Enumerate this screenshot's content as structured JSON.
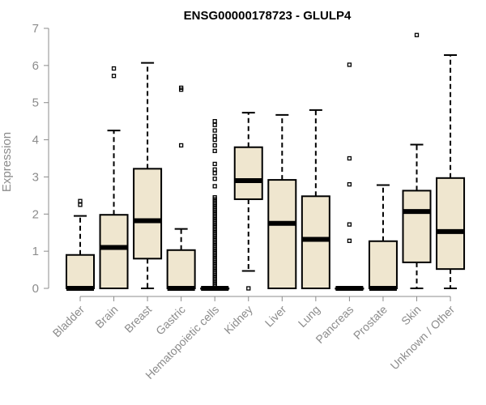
{
  "chart_data": {
    "type": "boxplot",
    "title": "ENSG00000178723 - GLULP4",
    "xlabel": "",
    "ylabel": "Expression",
    "ylim": [
      0,
      7
    ],
    "yticks": [
      0,
      1,
      2,
      3,
      4,
      5,
      6,
      7
    ],
    "box_color": "#efe6cf",
    "categories": [
      "Bladder",
      "Brain",
      "Breast",
      "Gastric",
      "Hematopoietic cells",
      "Kidney",
      "Liver",
      "Lung",
      "Pancreas",
      "Prostate",
      "Skin",
      "Unknown / Other"
    ],
    "boxes": [
      {
        "name": "Bladder",
        "min": 0,
        "q1": 0,
        "median": 0,
        "q3": 0.9,
        "max": 1.95,
        "outliers": [
          2.25,
          2.35
        ]
      },
      {
        "name": "Brain",
        "min": 0,
        "q1": 0,
        "median": 1.1,
        "q3": 1.98,
        "max": 4.25,
        "outliers": [
          5.72,
          5.92
        ]
      },
      {
        "name": "Breast",
        "min": 0,
        "q1": 0.8,
        "median": 1.82,
        "q3": 3.22,
        "max": 6.07,
        "outliers": []
      },
      {
        "name": "Gastric",
        "min": 0,
        "q1": 0,
        "median": 0,
        "q3": 1.03,
        "max": 1.6,
        "outliers": [
          3.85,
          5.35,
          5.4
        ]
      },
      {
        "name": "Hematopoietic cells",
        "min": 0,
        "q1": 0,
        "median": 0,
        "q3": 0,
        "max": 0,
        "outliers": [
          0.05,
          0.1,
          0.15,
          0.2,
          0.25,
          0.3,
          0.35,
          0.4,
          0.45,
          0.5,
          0.55,
          0.6,
          0.65,
          0.7,
          0.75,
          0.8,
          0.85,
          0.9,
          0.95,
          1.0,
          1.05,
          1.1,
          1.15,
          1.2,
          1.25,
          1.3,
          1.35,
          1.4,
          1.45,
          1.5,
          1.55,
          1.6,
          1.65,
          1.7,
          1.75,
          1.8,
          1.85,
          1.9,
          1.95,
          2.0,
          2.05,
          2.1,
          2.15,
          2.2,
          2.25,
          2.3,
          2.35,
          2.4,
          2.45,
          2.75,
          2.95,
          3.1,
          3.2,
          3.35,
          3.7,
          3.85,
          4.0,
          4.1,
          4.25,
          4.4,
          4.5
        ]
      },
      {
        "name": "Kidney",
        "min": 0.47,
        "q1": 2.4,
        "median": 2.9,
        "q3": 3.8,
        "max": 4.73,
        "outliers": [
          0
        ]
      },
      {
        "name": "Liver",
        "min": 0,
        "q1": 0,
        "median": 1.75,
        "q3": 2.92,
        "max": 4.67,
        "outliers": []
      },
      {
        "name": "Lung",
        "min": 0,
        "q1": 0,
        "median": 1.32,
        "q3": 2.48,
        "max": 4.8,
        "outliers": []
      },
      {
        "name": "Pancreas",
        "min": 0,
        "q1": 0,
        "median": 0,
        "q3": 0,
        "max": 0,
        "outliers": [
          1.28,
          1.72,
          2.8,
          3.5,
          6.02
        ]
      },
      {
        "name": "Prostate",
        "min": 0,
        "q1": 0,
        "median": 0,
        "q3": 1.27,
        "max": 2.78,
        "outliers": []
      },
      {
        "name": "Skin",
        "min": 0,
        "q1": 0.7,
        "median": 2.07,
        "q3": 2.63,
        "max": 3.87,
        "outliers": [
          6.82
        ]
      },
      {
        "name": "Unknown / Other",
        "min": 0,
        "q1": 0.52,
        "median": 1.53,
        "q3": 2.97,
        "max": 6.28,
        "outliers": []
      }
    ]
  }
}
